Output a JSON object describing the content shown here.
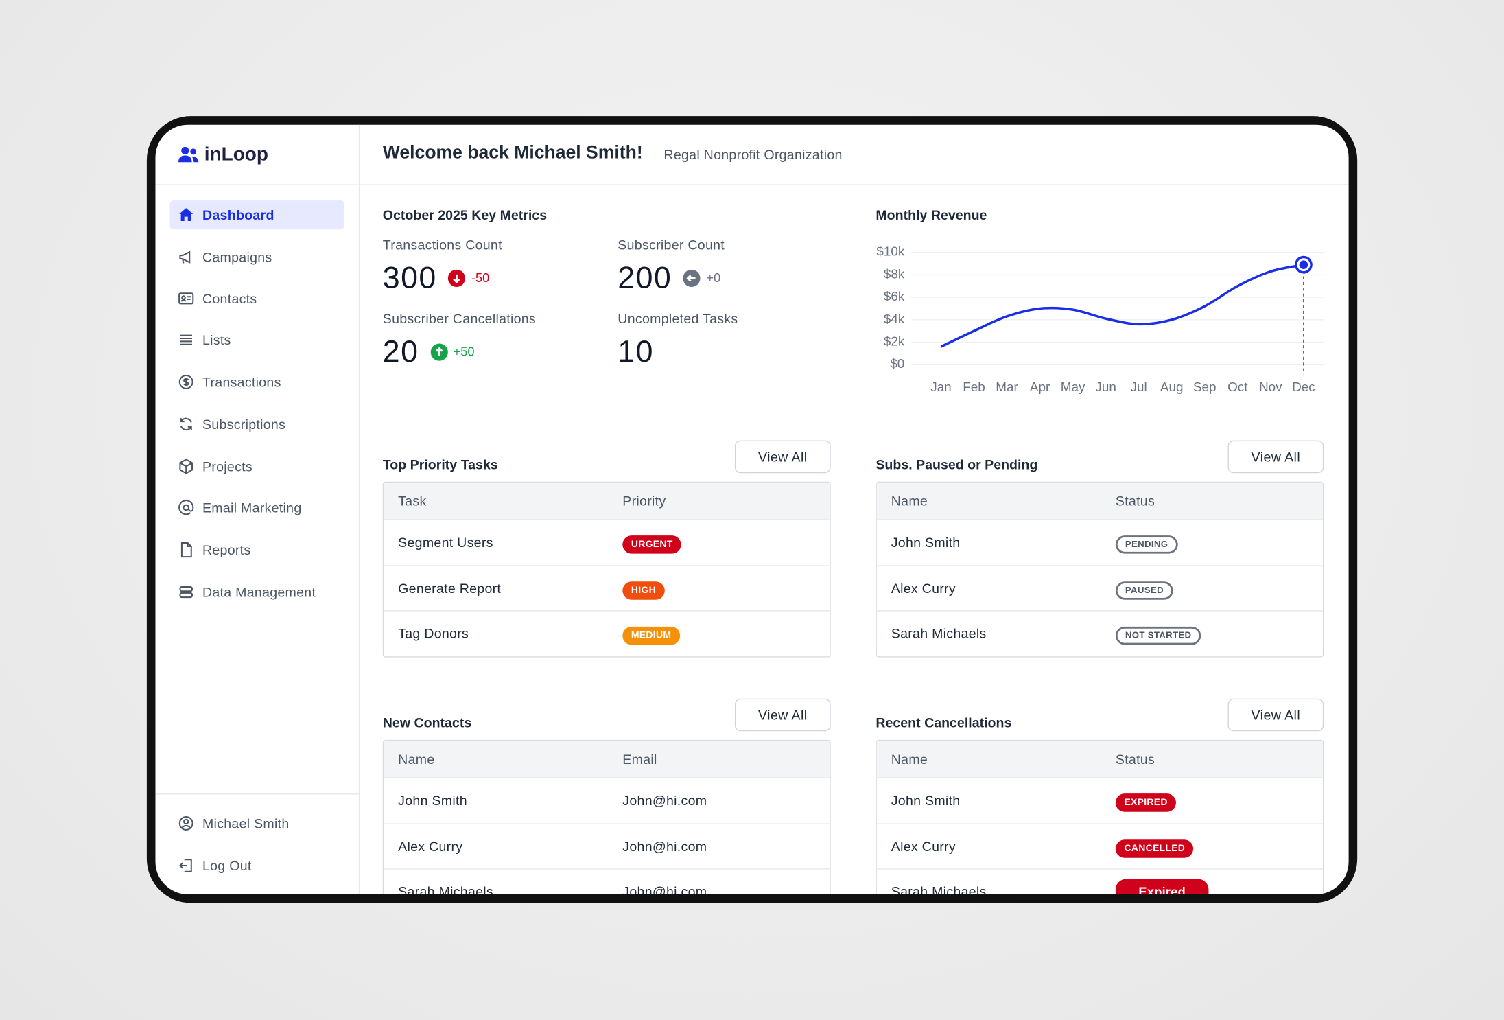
{
  "sidebar": {
    "brand": "inLoop",
    "nav": [
      "Dashboard",
      "Campaigns",
      "Contacts",
      "Lists",
      "Transactions",
      "Subscriptions",
      "Projects",
      "Email Marketing",
      "Reports",
      "Data Management"
    ],
    "footer": [
      "Michael Smith",
      "Log Out"
    ]
  },
  "header": {
    "title": "Welcome back Michael Smith!",
    "subtitle": "Regal Nonprofit Organization"
  },
  "metrics": {
    "title": "October 2025 Key Metrics",
    "items": [
      {
        "label": "Transactions Count",
        "value": 300,
        "change": "-50"
      },
      {
        "label": "Subscriber Count",
        "value": 200,
        "change": "+0"
      },
      {
        "label": "Subscriber Cancellations",
        "value": 20,
        "change": "+50"
      },
      {
        "label": "Uncompleted Tasks",
        "value": 10
      }
    ]
  },
  "chart_data": {
    "type": "line",
    "title": "Monthly Revenue",
    "categories": [
      "Jan",
      "Feb",
      "Mar",
      "Apr",
      "May",
      "Jun",
      "Jul",
      "Aug",
      "Sep",
      "Oct",
      "Nov",
      "Dec"
    ],
    "values": [
      1600,
      3000,
      4300,
      5000,
      4900,
      4100,
      3600,
      4000,
      5200,
      7000,
      8300,
      8900
    ],
    "color": "#1a2ee6",
    "ylim": [
      0,
      10000
    ],
    "yticks": [
      {
        "value": 0,
        "label": "$0"
      },
      {
        "value": 2000,
        "label": "$2k"
      },
      {
        "value": 4000,
        "label": "$4k"
      },
      {
        "value": 6000,
        "label": "$6k"
      },
      {
        "value": 8000,
        "label": "$8k"
      },
      {
        "value": 10000,
        "label": "$10k"
      }
    ],
    "grid": true
  },
  "panels": [
    {
      "title": "Top Priority Tasks",
      "button": "View All",
      "columns": [
        "Task",
        "Priority"
      ],
      "rows": [
        [
          "Segment Users",
          "URGENT"
        ],
        [
          "Generate Report",
          "HIGH"
        ],
        [
          "Tag Donors",
          "MEDIUM"
        ]
      ]
    },
    {
      "title": "Subs. Paused or Pending",
      "button": "View All",
      "columns": [
        "Name",
        "Status"
      ],
      "rows": [
        [
          "John Smith",
          "PENDING"
        ],
        [
          "Alex Curry",
          "PAUSED"
        ],
        [
          "Sarah Michaels",
          "NOT STARTED"
        ]
      ]
    },
    {
      "title": "New Contacts",
      "button": "View All",
      "columns": [
        "Name",
        "Email"
      ],
      "rows": [
        [
          "John Smith",
          "John@hi.com"
        ],
        [
          "Alex Curry",
          "John@hi.com"
        ],
        [
          "Sarah Michaels",
          "John@hi.com"
        ]
      ]
    },
    {
      "title": "Recent Cancellations",
      "button": "View All",
      "columns": [
        "Name",
        "Status"
      ],
      "rows": [
        [
          "John Smith",
          "EXPIRED"
        ],
        [
          "Alex Curry",
          "CANCELLED"
        ],
        [
          "Sarah Michaels",
          "Expired"
        ]
      ]
    }
  ]
}
